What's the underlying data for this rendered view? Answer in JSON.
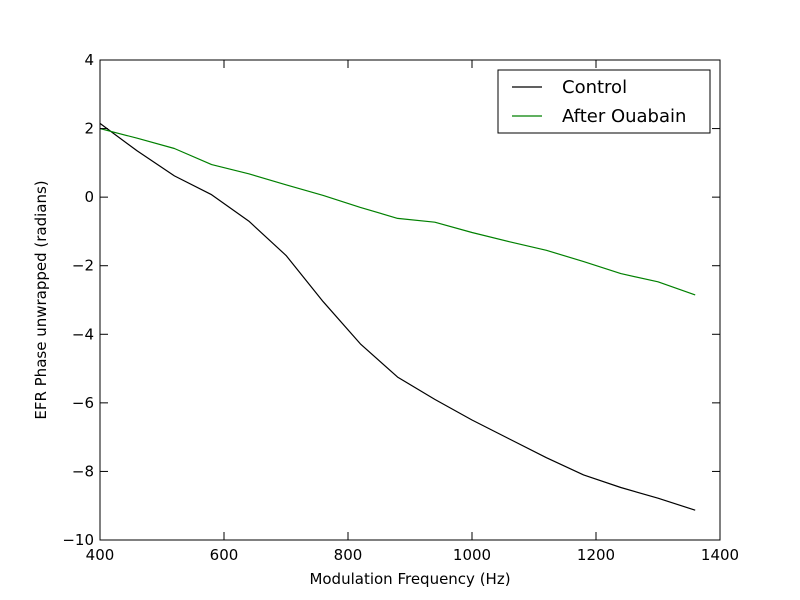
{
  "chart_data": {
    "type": "line",
    "title": "",
    "xlabel": "Modulation Frequency (Hz)",
    "ylabel": "EFR Phase unwrapped (radians)",
    "xlim": [
      400,
      1400
    ],
    "ylim": [
      -10,
      4
    ],
    "xticks": [
      400,
      600,
      800,
      1000,
      1200,
      1400
    ],
    "yticks": [
      4,
      2,
      0,
      -2,
      -4,
      -6,
      -8,
      -10
    ],
    "xtick_labels": [
      "400",
      "600",
      "800",
      "1000",
      "1200",
      "1400"
    ],
    "ytick_labels": [
      "4",
      "2",
      "0",
      "−2",
      "−4",
      "−6",
      "−8",
      "−10"
    ],
    "grid": false,
    "legend_position": "top-right",
    "series": [
      {
        "name": "Control",
        "color": "#000000",
        "x": [
          400,
          460,
          520,
          580,
          640,
          700,
          760,
          820,
          880,
          940,
          1000,
          1060,
          1120,
          1180,
          1240,
          1300,
          1360
        ],
        "y": [
          2.15,
          1.35,
          0.62,
          0.07,
          -0.7,
          -1.7,
          -3.05,
          -4.28,
          -5.25,
          -5.9,
          -6.5,
          -7.05,
          -7.6,
          -8.1,
          -8.47,
          -8.78,
          -9.13
        ]
      },
      {
        "name": "After Ouabain",
        "color": "#008000",
        "x": [
          400,
          460,
          520,
          580,
          640,
          700,
          760,
          820,
          880,
          940,
          1000,
          1060,
          1120,
          1180,
          1240,
          1300,
          1360
        ],
        "y": [
          2.0,
          1.72,
          1.42,
          0.95,
          0.68,
          0.36,
          0.05,
          -0.3,
          -0.62,
          -0.73,
          -1.03,
          -1.3,
          -1.55,
          -1.88,
          -2.23,
          -2.47,
          -2.85
        ]
      }
    ]
  }
}
